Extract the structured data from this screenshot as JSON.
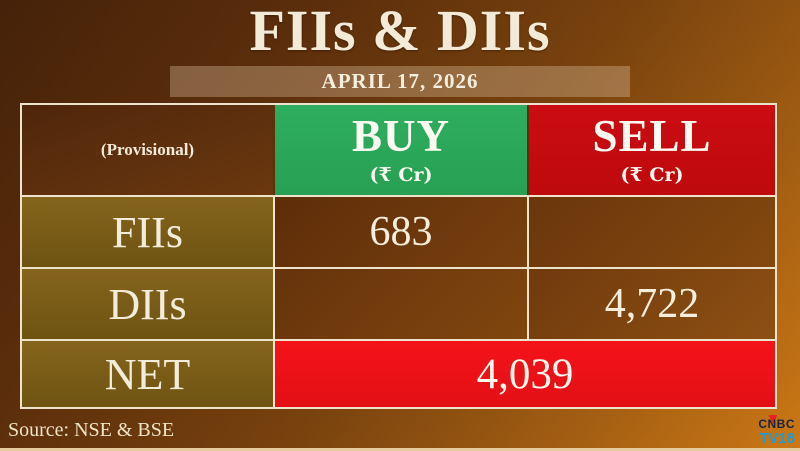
{
  "title": "FIIs & DIIs",
  "date": "APRIL 17, 2026",
  "table": {
    "provisional": "(Provisional)",
    "buy": "BUY",
    "sell": "SELL",
    "unit": "(₹ Cr)",
    "fiis_label": "FIIs",
    "fiis_buy": "683",
    "fiis_sell": "",
    "diis_label": "DIIs",
    "diis_buy": "",
    "diis_sell": "4,722",
    "net_label": "NET",
    "net_value": "4,039"
  },
  "source": "Source: NSE & BSE",
  "logo": {
    "line1": "CNBC",
    "line2": "TV18"
  },
  "colors": {
    "buy_green": "#2aa95a",
    "sell_red": "#c40c10",
    "net_red": "#f31318",
    "cream_text": "#f3ead8",
    "olive_label": "#7b5c15",
    "brown_cell": "#6b360c",
    "logo_blue": "#1e9cd8",
    "background_dark": "#45220a",
    "background_light": "#cc7815"
  },
  "chart_data": {
    "type": "table",
    "title": "FIIs & DIIs",
    "subtitle": "APRIL 17, 2026",
    "columns": [
      "(Provisional)",
      "BUY (₹ Cr)",
      "SELL (₹ Cr)"
    ],
    "rows": [
      {
        "label": "FIIs",
        "buy": 683,
        "sell": null
      },
      {
        "label": "DIIs",
        "buy": null,
        "sell": 4722
      },
      {
        "label": "NET",
        "net": 4039
      }
    ],
    "source": "Source: NSE & BSE"
  }
}
